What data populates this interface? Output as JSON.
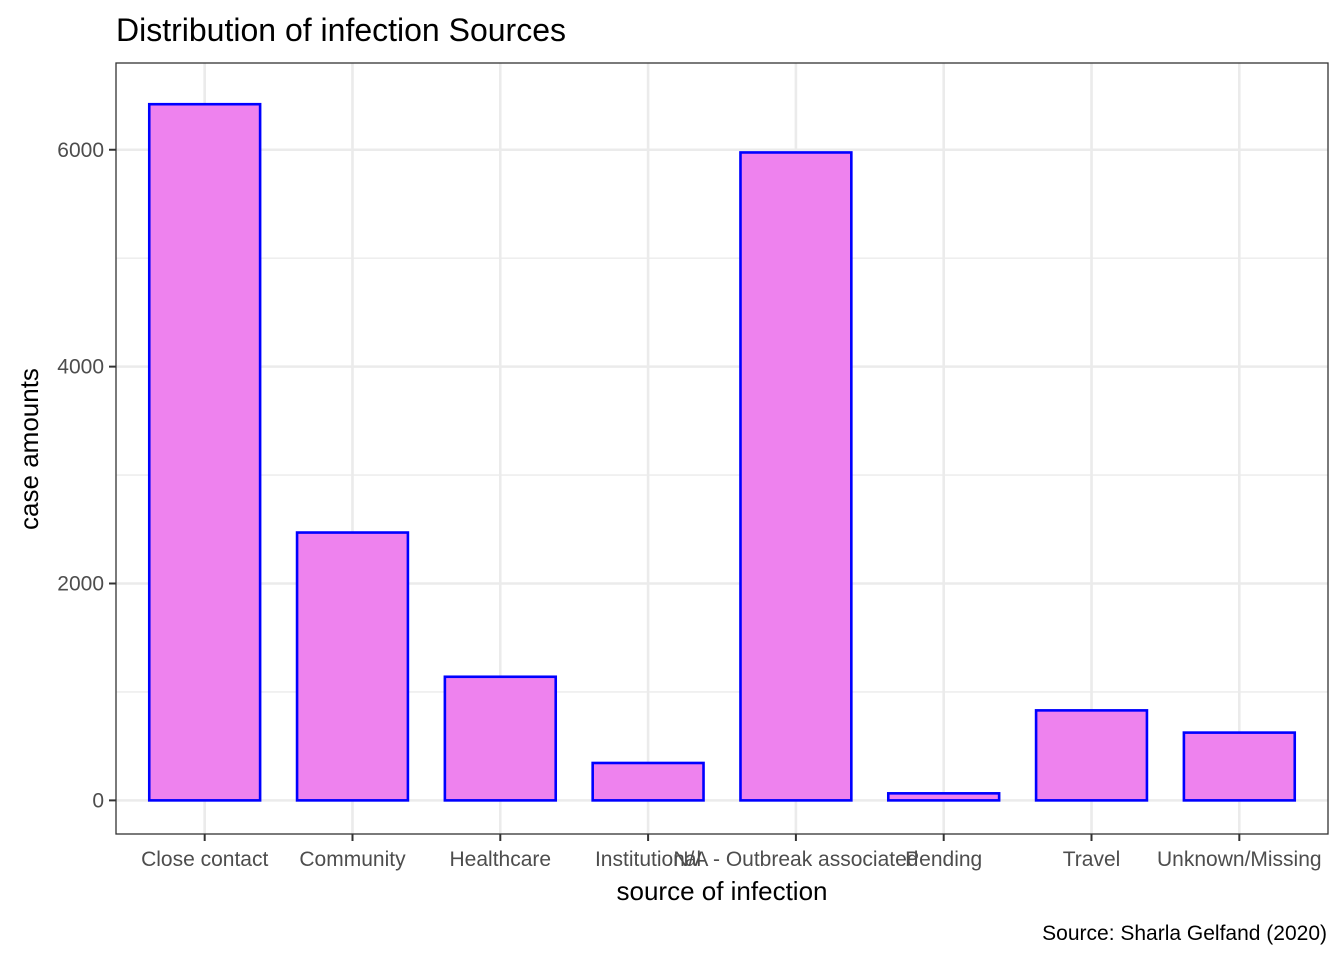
{
  "chart_data": {
    "type": "bar",
    "title": "Distribution of infection Sources",
    "xlabel": "source of infection",
    "ylabel": "case amounts",
    "caption": "Source: Sharla Gelfand (2020)",
    "categories": [
      "Close contact",
      "Community",
      "Healthcare",
      "Institutional",
      "N/A - Outbreak associated",
      "Pending",
      "Travel",
      "Unknown/Missing"
    ],
    "tick_labels": [
      "Close contact",
      "Community",
      "Healthcare",
      "Institutional",
      "N/A - Outbreak associated",
      "Pending",
      "Travel",
      "Unknown/Missing"
    ],
    "values": [
      6420,
      2470,
      1140,
      345,
      5975,
      65,
      830,
      625
    ],
    "ylim": [
      -310,
      6800
    ],
    "yticks": [
      0,
      2000,
      4000,
      6000
    ],
    "grid": true,
    "colors": {
      "bar_fill": "#ee82ee",
      "bar_stroke": "#0000ff",
      "grid": "#ebebeb",
      "panel_border": "#333333"
    }
  }
}
